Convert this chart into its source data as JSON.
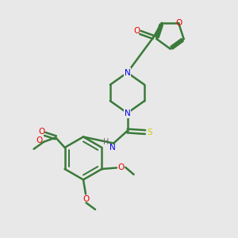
{
  "background_color": "#e8e8e8",
  "bond_color": "#3a7a3a",
  "nitrogen_color": "#0000ee",
  "oxygen_color": "#ee0000",
  "sulfur_color": "#cccc00",
  "hydrogen_color": "#666666",
  "figsize": [
    3.0,
    3.0
  ],
  "dpi": 100,
  "xlim": [
    0,
    10
  ],
  "ylim": [
    0,
    10
  ]
}
